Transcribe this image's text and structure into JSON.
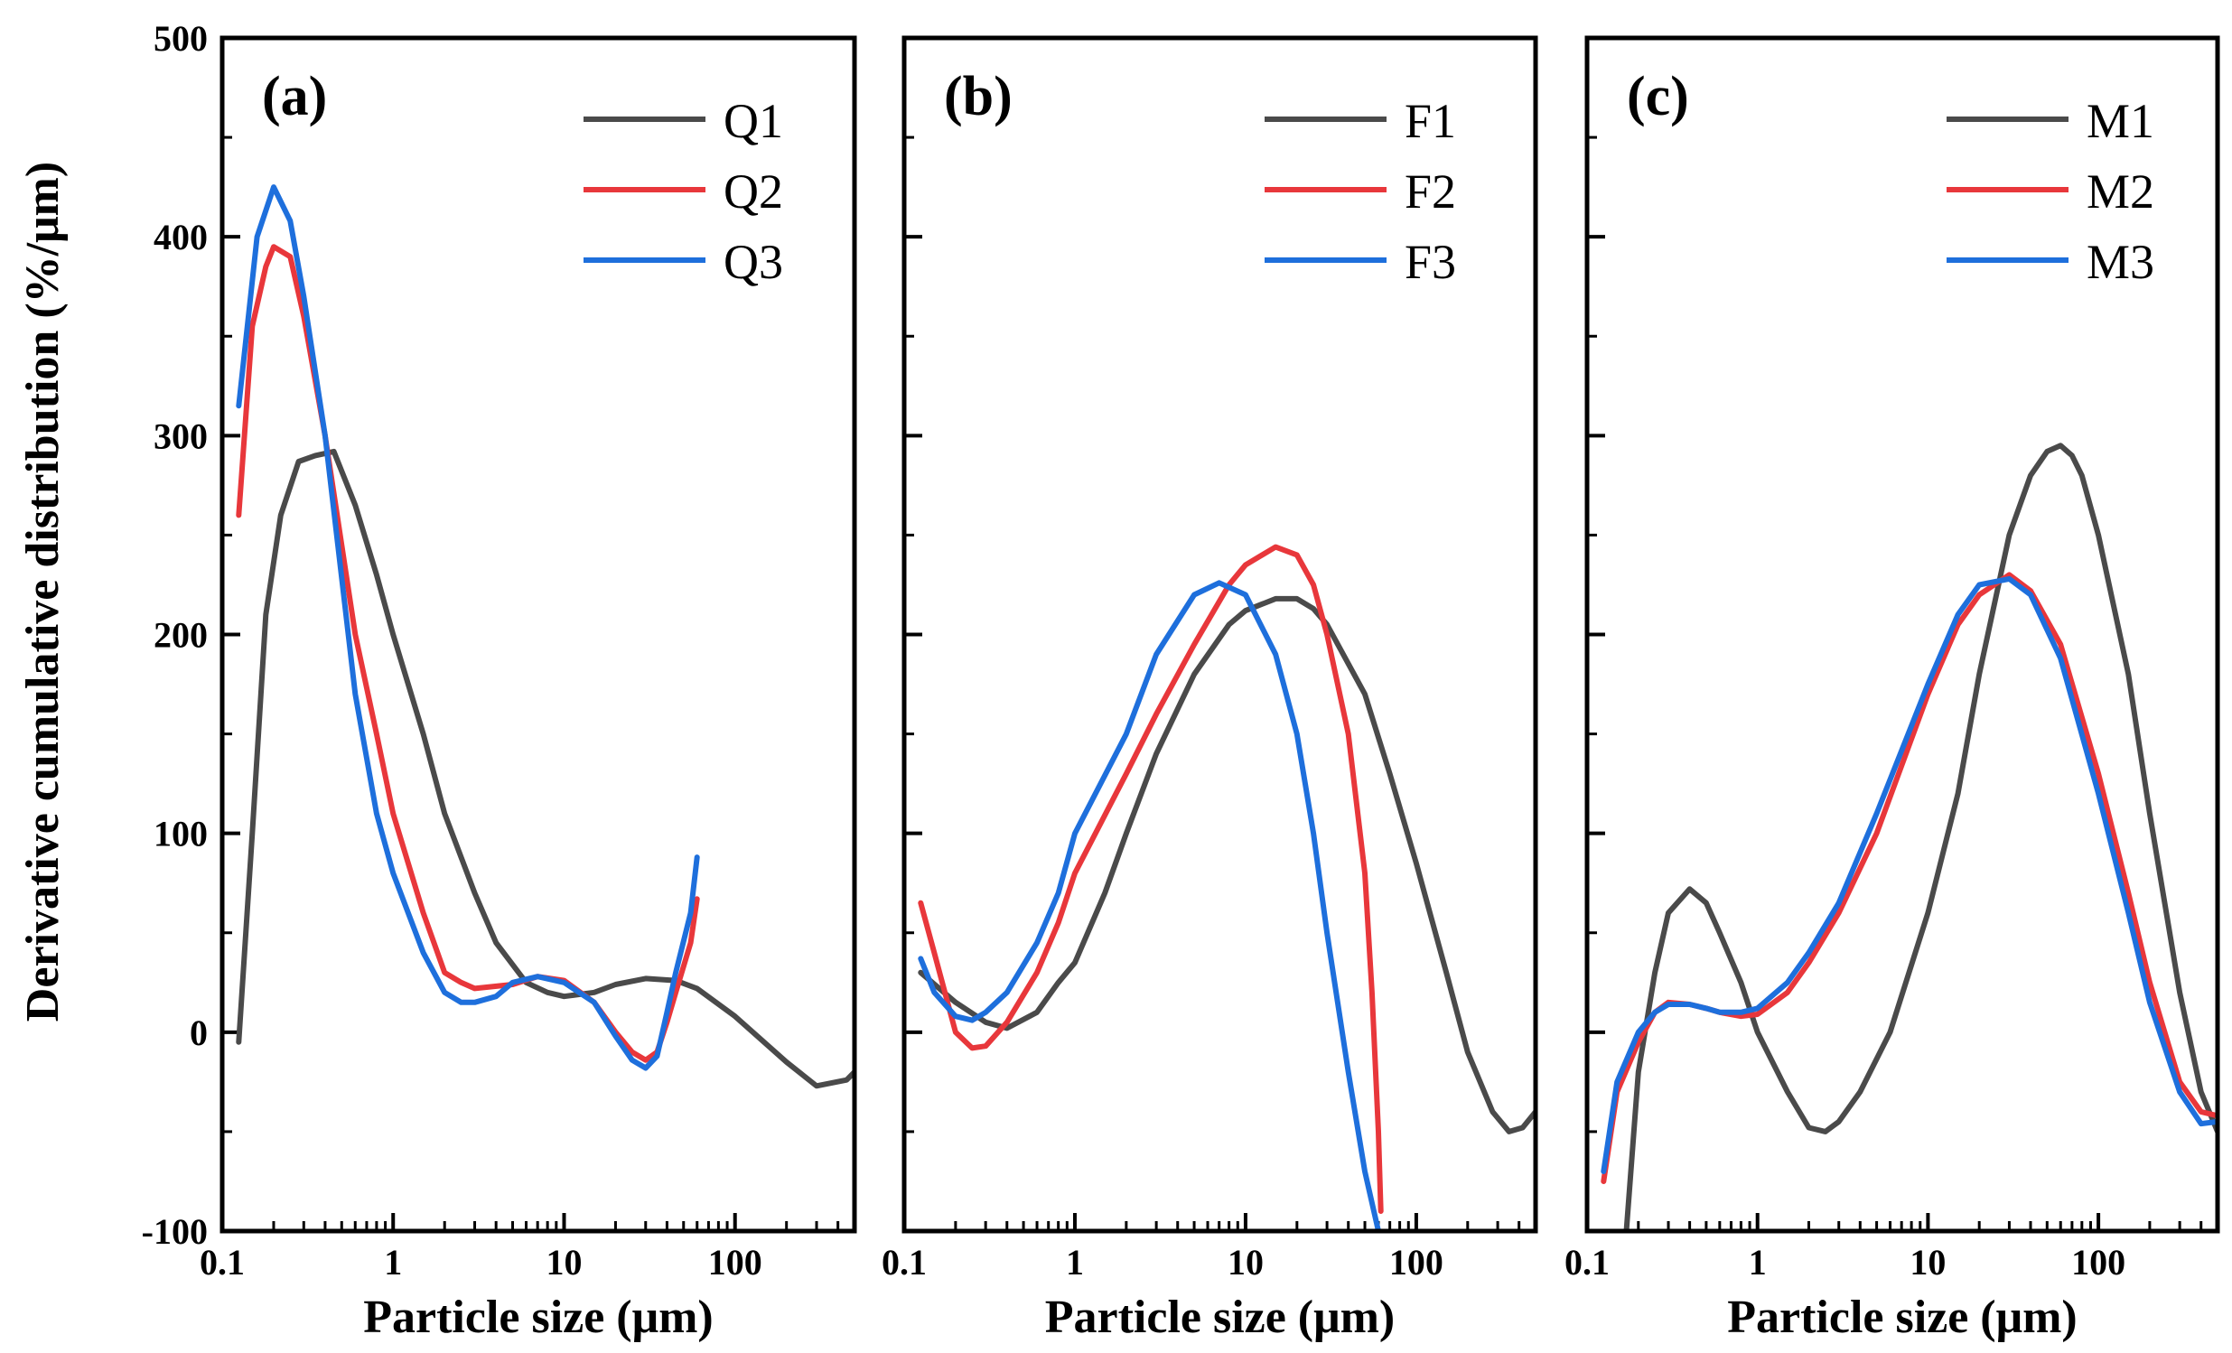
{
  "colors": {
    "gray": "#4a4a4a",
    "red": "#e8373b",
    "blue": "#1e6fdc"
  },
  "ylabel": "Derivative cumulative distribution (%/μm)",
  "xlabel": "Particle size (μm)",
  "yticks": [
    "-100",
    "0",
    "100",
    "200",
    "300",
    "400",
    "500"
  ],
  "xticks": [
    "0.1",
    "1",
    "10",
    "100"
  ],
  "chart_data": [
    {
      "type": "line",
      "panel_label": "(a)",
      "xscale": "log",
      "xlim": [
        0.1,
        500
      ],
      "ylim": [
        -100,
        500
      ],
      "legend_position": "top-right",
      "series": [
        {
          "name": "Q1",
          "color": "gray",
          "points": [
            [
              0.125,
              -5
            ],
            [
              0.15,
              100
            ],
            [
              0.18,
              210
            ],
            [
              0.22,
              260
            ],
            [
              0.28,
              287
            ],
            [
              0.35,
              290
            ],
            [
              0.45,
              292
            ],
            [
              0.6,
              265
            ],
            [
              0.8,
              230
            ],
            [
              1.0,
              200
            ],
            [
              1.5,
              150
            ],
            [
              2.0,
              110
            ],
            [
              3.0,
              70
            ],
            [
              4.0,
              45
            ],
            [
              6.0,
              25
            ],
            [
              8.0,
              20
            ],
            [
              10,
              18
            ],
            [
              15,
              20
            ],
            [
              20,
              24
            ],
            [
              30,
              27
            ],
            [
              45,
              26
            ],
            [
              60,
              22
            ],
            [
              100,
              8
            ],
            [
              200,
              -15
            ],
            [
              300,
              -27
            ],
            [
              450,
              -24
            ],
            [
              500,
              -20
            ]
          ]
        },
        {
          "name": "Q2",
          "color": "red",
          "points": [
            [
              0.125,
              260
            ],
            [
              0.15,
              355
            ],
            [
              0.18,
              385
            ],
            [
              0.2,
              395
            ],
            [
              0.25,
              390
            ],
            [
              0.3,
              360
            ],
            [
              0.4,
              300
            ],
            [
              0.6,
              200
            ],
            [
              0.8,
              150
            ],
            [
              1.0,
              110
            ],
            [
              1.5,
              60
            ],
            [
              2.0,
              30
            ],
            [
              2.5,
              25
            ],
            [
              3.0,
              22
            ],
            [
              5.0,
              24
            ],
            [
              7.0,
              28
            ],
            [
              10,
              26
            ],
            [
              15,
              15
            ],
            [
              20,
              0
            ],
            [
              25,
              -10
            ],
            [
              30,
              -14
            ],
            [
              35,
              -10
            ],
            [
              40,
              5
            ],
            [
              45,
              20
            ],
            [
              55,
              45
            ],
            [
              60,
              67
            ]
          ]
        },
        {
          "name": "Q3",
          "color": "blue",
          "points": [
            [
              0.125,
              315
            ],
            [
              0.16,
              400
            ],
            [
              0.2,
              425
            ],
            [
              0.25,
              408
            ],
            [
              0.3,
              370
            ],
            [
              0.4,
              300
            ],
            [
              0.6,
              170
            ],
            [
              0.8,
              110
            ],
            [
              1.0,
              80
            ],
            [
              1.5,
              40
            ],
            [
              2.0,
              20
            ],
            [
              2.5,
              15
            ],
            [
              3.0,
              15
            ],
            [
              4.0,
              18
            ],
            [
              5.0,
              25
            ],
            [
              7.0,
              28
            ],
            [
              10,
              25
            ],
            [
              15,
              15
            ],
            [
              20,
              -2
            ],
            [
              25,
              -14
            ],
            [
              30,
              -18
            ],
            [
              35,
              -12
            ],
            [
              40,
              10
            ],
            [
              45,
              30
            ],
            [
              55,
              60
            ],
            [
              60,
              88
            ]
          ]
        }
      ]
    },
    {
      "type": "line",
      "panel_label": "(b)",
      "xscale": "log",
      "xlim": [
        0.1,
        500
      ],
      "ylim": [
        -100,
        500
      ],
      "legend_position": "top-right",
      "series": [
        {
          "name": "F1",
          "color": "gray",
          "points": [
            [
              0.125,
              30
            ],
            [
              0.2,
              15
            ],
            [
              0.3,
              5
            ],
            [
              0.4,
              2
            ],
            [
              0.6,
              10
            ],
            [
              0.8,
              25
            ],
            [
              1.0,
              35
            ],
            [
              1.5,
              70
            ],
            [
              2.0,
              100
            ],
            [
              3.0,
              140
            ],
            [
              5.0,
              180
            ],
            [
              8.0,
              205
            ],
            [
              10,
              212
            ],
            [
              15,
              218
            ],
            [
              20,
              218
            ],
            [
              25,
              213
            ],
            [
              30,
              205
            ],
            [
              50,
              170
            ],
            [
              70,
              130
            ],
            [
              100,
              85
            ],
            [
              150,
              30
            ],
            [
              200,
              -10
            ],
            [
              280,
              -40
            ],
            [
              350,
              -50
            ],
            [
              420,
              -48
            ],
            [
              500,
              -40
            ]
          ]
        },
        {
          "name": "F2",
          "color": "red",
          "points": [
            [
              0.125,
              65
            ],
            [
              0.15,
              40
            ],
            [
              0.2,
              0
            ],
            [
              0.25,
              -8
            ],
            [
              0.3,
              -7
            ],
            [
              0.4,
              5
            ],
            [
              0.6,
              30
            ],
            [
              0.8,
              55
            ],
            [
              1.0,
              80
            ],
            [
              2.0,
              130
            ],
            [
              3.0,
              160
            ],
            [
              5.0,
              195
            ],
            [
              8.0,
              225
            ],
            [
              10,
              235
            ],
            [
              15,
              244
            ],
            [
              20,
              240
            ],
            [
              25,
              225
            ],
            [
              30,
              200
            ],
            [
              40,
              150
            ],
            [
              50,
              80
            ],
            [
              55,
              20
            ],
            [
              60,
              -50
            ],
            [
              62,
              -90
            ]
          ]
        },
        {
          "name": "F3",
          "color": "blue",
          "points": [
            [
              0.125,
              37
            ],
            [
              0.15,
              20
            ],
            [
              0.2,
              8
            ],
            [
              0.25,
              6
            ],
            [
              0.3,
              10
            ],
            [
              0.4,
              20
            ],
            [
              0.6,
              45
            ],
            [
              0.8,
              70
            ],
            [
              1.0,
              100
            ],
            [
              2.0,
              150
            ],
            [
              3.0,
              190
            ],
            [
              5.0,
              220
            ],
            [
              7.0,
              226
            ],
            [
              10,
              220
            ],
            [
              15,
              190
            ],
            [
              20,
              150
            ],
            [
              25,
              100
            ],
            [
              30,
              50
            ],
            [
              40,
              -20
            ],
            [
              50,
              -70
            ],
            [
              60,
              -100
            ]
          ]
        }
      ]
    },
    {
      "type": "line",
      "panel_label": "(c)",
      "xscale": "log",
      "xlim": [
        0.1,
        500
      ],
      "ylim": [
        -100,
        500
      ],
      "legend_position": "top-right",
      "series": [
        {
          "name": "M1",
          "color": "gray",
          "points": [
            [
              0.17,
              -100
            ],
            [
              0.2,
              -20
            ],
            [
              0.25,
              30
            ],
            [
              0.3,
              60
            ],
            [
              0.4,
              72
            ],
            [
              0.5,
              65
            ],
            [
              0.6,
              50
            ],
            [
              0.8,
              25
            ],
            [
              1.0,
              0
            ],
            [
              1.5,
              -30
            ],
            [
              2.0,
              -48
            ],
            [
              2.5,
              -50
            ],
            [
              3.0,
              -45
            ],
            [
              4.0,
              -30
            ],
            [
              6.0,
              0
            ],
            [
              10,
              60
            ],
            [
              15,
              120
            ],
            [
              20,
              180
            ],
            [
              30,
              250
            ],
            [
              40,
              280
            ],
            [
              50,
              292
            ],
            [
              60,
              295
            ],
            [
              70,
              290
            ],
            [
              80,
              280
            ],
            [
              100,
              250
            ],
            [
              150,
              180
            ],
            [
              200,
              110
            ],
            [
              300,
              20
            ],
            [
              400,
              -30
            ],
            [
              500,
              -50
            ]
          ]
        },
        {
          "name": "M2",
          "color": "red",
          "points": [
            [
              0.125,
              -75
            ],
            [
              0.15,
              -30
            ],
            [
              0.2,
              -5
            ],
            [
              0.25,
              10
            ],
            [
              0.3,
              15
            ],
            [
              0.4,
              14
            ],
            [
              0.5,
              12
            ],
            [
              0.6,
              10
            ],
            [
              0.8,
              8
            ],
            [
              1.0,
              9
            ],
            [
              1.5,
              20
            ],
            [
              2.0,
              35
            ],
            [
              3.0,
              60
            ],
            [
              5.0,
              100
            ],
            [
              10,
              170
            ],
            [
              15,
              205
            ],
            [
              20,
              220
            ],
            [
              30,
              230
            ],
            [
              40,
              222
            ],
            [
              60,
              195
            ],
            [
              100,
              130
            ],
            [
              150,
              70
            ],
            [
              200,
              25
            ],
            [
              300,
              -25
            ],
            [
              400,
              -40
            ],
            [
              500,
              -42
            ]
          ]
        },
        {
          "name": "M3",
          "color": "blue",
          "points": [
            [
              0.125,
              -70
            ],
            [
              0.15,
              -25
            ],
            [
              0.2,
              0
            ],
            [
              0.25,
              10
            ],
            [
              0.3,
              14
            ],
            [
              0.4,
              14
            ],
            [
              0.5,
              12
            ],
            [
              0.6,
              10
            ],
            [
              0.8,
              10
            ],
            [
              1.0,
              12
            ],
            [
              1.5,
              25
            ],
            [
              2.0,
              40
            ],
            [
              3.0,
              65
            ],
            [
              5.0,
              110
            ],
            [
              10,
              175
            ],
            [
              15,
              210
            ],
            [
              20,
              225
            ],
            [
              30,
              228
            ],
            [
              40,
              220
            ],
            [
              60,
              188
            ],
            [
              100,
              120
            ],
            [
              150,
              60
            ],
            [
              200,
              15
            ],
            [
              300,
              -30
            ],
            [
              400,
              -46
            ],
            [
              500,
              -45
            ]
          ]
        }
      ]
    }
  ]
}
